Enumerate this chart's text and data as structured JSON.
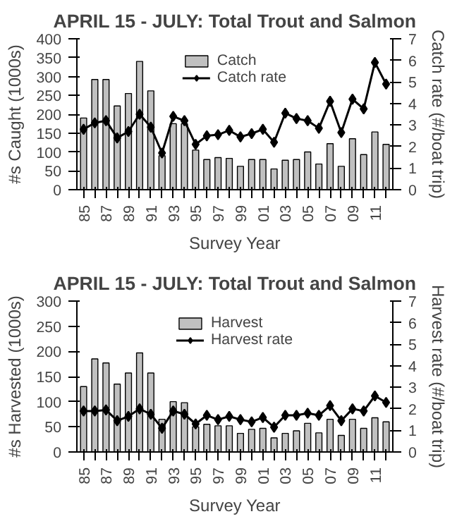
{
  "chart_data": [
    {
      "type": "bar",
      "title": "APRIL 15 - JULY: Total Trout and Salmon",
      "xlabel": "Survey Year",
      "ylabel": "#s Caught (1000s)",
      "y2label": "Catch rate (#/boat trip)",
      "categories": [
        "85",
        null,
        "87",
        null,
        "89",
        null,
        "91",
        null,
        "93",
        null,
        "95",
        null,
        "97",
        null,
        "99",
        null,
        "01",
        null,
        "03",
        null,
        "05",
        null,
        "07",
        null,
        "09",
        null,
        "11",
        null
      ],
      "series": [
        {
          "name": "Catch",
          "color": "#c0c0c0",
          "values": [
            190,
            292,
            292,
            222,
            255,
            340,
            262,
            90,
            175,
            175,
            105,
            80,
            85,
            83,
            62,
            80,
            80,
            55,
            78,
            80,
            100,
            68,
            122,
            62,
            135,
            93,
            153,
            120
          ]
        },
        {
          "name": "Catch rate",
          "type": "line",
          "axis": "y2",
          "color": "#000000",
          "values": [
            2.8,
            3.1,
            3.2,
            2.4,
            2.7,
            3.5,
            2.9,
            1.7,
            3.4,
            3.2,
            2.1,
            2.5,
            2.55,
            2.75,
            2.45,
            2.6,
            2.8,
            2.2,
            3.55,
            3.3,
            3.2,
            2.85,
            4.1,
            2.65,
            4.2,
            3.75,
            5.9,
            4.9
          ]
        }
      ],
      "ylim": [
        0,
        400
      ],
      "yticks": [
        0,
        50,
        100,
        150,
        200,
        250,
        300,
        350,
        400
      ],
      "y2lim": [
        0,
        7
      ],
      "y2ticks": [
        0,
        1,
        2,
        3,
        4,
        5,
        6,
        7
      ],
      "legend": "top",
      "marker": "diamond",
      "grid": false
    },
    {
      "type": "bar",
      "title": "APRIL 15 - JULY: Total Trout and Salmon",
      "xlabel": "Survey Year",
      "ylabel": "#s Harvested (1000s)",
      "y2label": "Harvest rate (#/boat trip)",
      "categories": [
        "85",
        null,
        "87",
        null,
        "89",
        null,
        "91",
        null,
        "93",
        null,
        "95",
        null,
        "97",
        null,
        "99",
        null,
        "01",
        null,
        "03",
        null,
        "05",
        null,
        "07",
        null,
        "09",
        null,
        "11",
        null
      ],
      "series": [
        {
          "name": "Harvest",
          "color": "#c0c0c0",
          "values": [
            130,
            185,
            177,
            135,
            157,
            197,
            157,
            65,
            100,
            98,
            50,
            55,
            52,
            52,
            37,
            45,
            47,
            28,
            37,
            42,
            57,
            38,
            65,
            33,
            65,
            47,
            68,
            60
          ]
        },
        {
          "name": "Harvest rate",
          "type": "line",
          "axis": "y2",
          "color": "#000000",
          "values": [
            1.9,
            1.9,
            1.95,
            1.45,
            1.65,
            2.0,
            1.75,
            1.1,
            1.9,
            1.75,
            1.3,
            1.7,
            1.5,
            1.65,
            1.5,
            1.4,
            1.6,
            1.15,
            1.7,
            1.7,
            1.8,
            1.7,
            2.15,
            1.45,
            2.0,
            1.9,
            2.6,
            2.3
          ]
        }
      ],
      "ylim": [
        0,
        300
      ],
      "yticks": [
        0,
        50,
        100,
        150,
        200,
        250,
        300
      ],
      "y2lim": [
        0,
        7
      ],
      "y2ticks": [
        0,
        1,
        2,
        3,
        4,
        5,
        6,
        7
      ],
      "legend": "top",
      "marker": "diamond",
      "grid": false
    }
  ]
}
